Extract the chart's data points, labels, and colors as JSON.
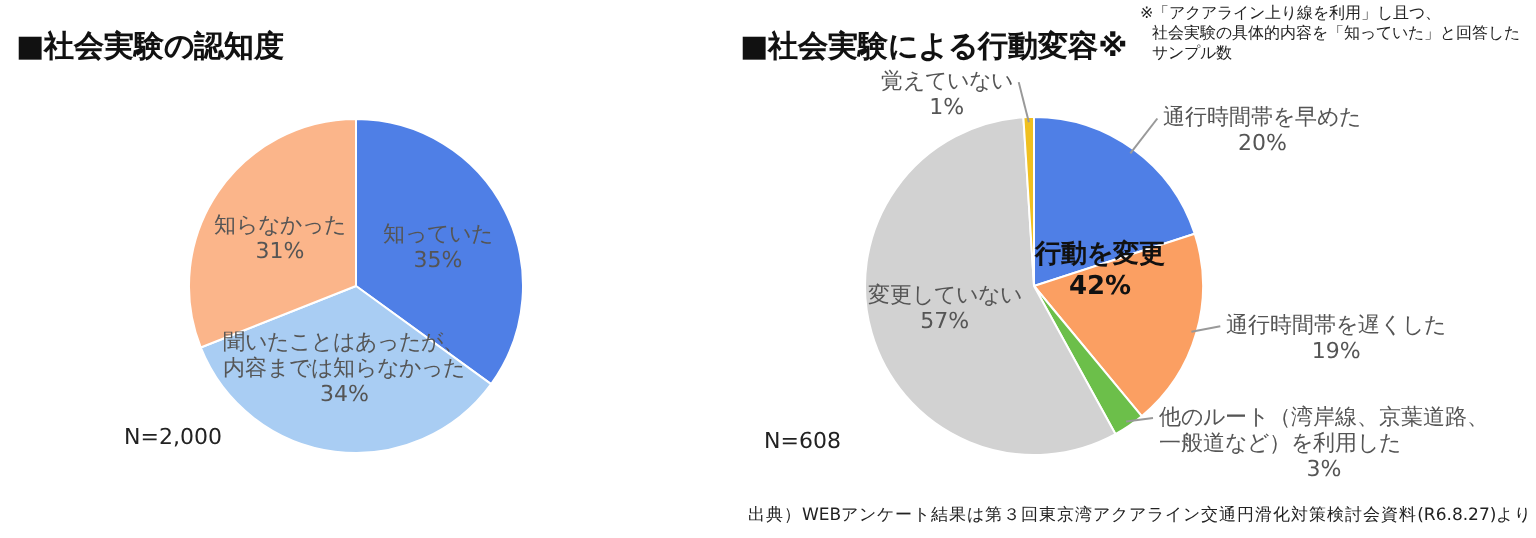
{
  "chart_data": [
    {
      "type": "pie",
      "title": "■社会実験の認知度",
      "categories": [
        "知っていた",
        "聞いたことはあったが、内容までは知らなかった",
        "知らなかった"
      ],
      "values": [
        35,
        34,
        31
      ],
      "value_labels": [
        "35%",
        "34%",
        "31%"
      ],
      "colors": [
        "#4f7fe6",
        "#a9cdf3",
        "#fbb58a"
      ],
      "legend": false,
      "annotations": [
        "N=2,000"
      ]
    },
    {
      "type": "pie",
      "title": "■社会実験による行動変容※",
      "categories": [
        "通行時間帯を早めた",
        "通行時間帯を遅くした",
        "他のルート（湾岸線、京葉道路、一般道など）を利用した",
        "変更していない",
        "覚えていない"
      ],
      "values": [
        20,
        19,
        3,
        57,
        1
      ],
      "value_labels": [
        "20%",
        "19%",
        "3%",
        "57%",
        "1%"
      ],
      "colors": [
        "#4f7fe6",
        "#fb9f62",
        "#6cbf4a",
        "#d2d2d2",
        "#f0c020"
      ],
      "legend": false,
      "annotations": [
        "※「アクアライン上り線を利用」し且つ、",
        "社会実験の具体的内容を「知っていた」と回答した",
        "サンプル数",
        "行動を変更\n42%",
        "N=608",
        "出典）WEBアンケート結果は第３回東京湾アクアライン交通円滑化対策検討会資料(R6.8.27)より"
      ]
    }
  ]
}
